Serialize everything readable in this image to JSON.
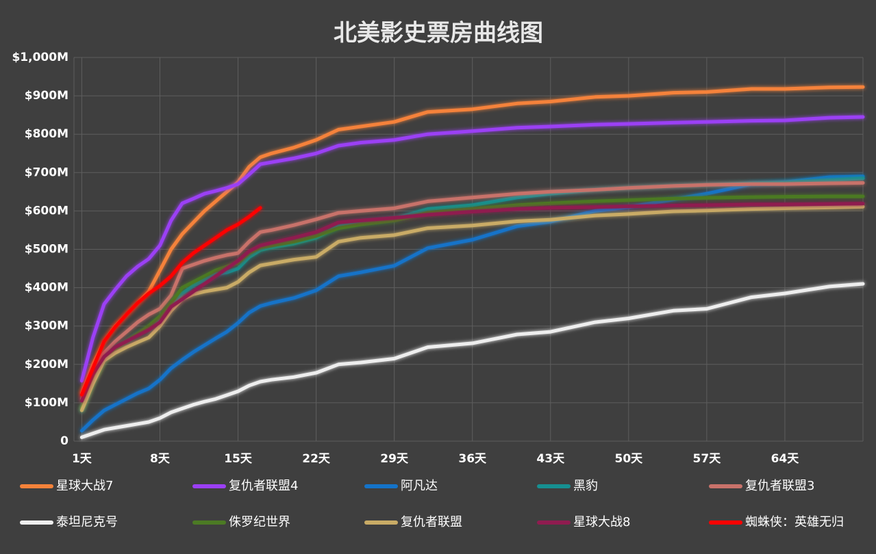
{
  "chart_data": {
    "type": "line",
    "title": "北美影史票房曲线图",
    "x": [
      1,
      2,
      3,
      4,
      5,
      6,
      7,
      8,
      9,
      10,
      11,
      12,
      13,
      14,
      15,
      16,
      17,
      18,
      20,
      22,
      24,
      26,
      29,
      32,
      36,
      40,
      43,
      47,
      50,
      54,
      57,
      61,
      64,
      68,
      71
    ],
    "xlim": [
      0.3,
      71
    ],
    "xticks": [
      {
        "value": 1,
        "label": "1天"
      },
      {
        "value": 8,
        "label": "8天"
      },
      {
        "value": 15,
        "label": "15天"
      },
      {
        "value": 22,
        "label": "22天"
      },
      {
        "value": 29,
        "label": "29天"
      },
      {
        "value": 36,
        "label": "36天"
      },
      {
        "value": 43,
        "label": "43天"
      },
      {
        "value": 50,
        "label": "50天"
      },
      {
        "value": 57,
        "label": "57天"
      },
      {
        "value": 64,
        "label": "64天"
      }
    ],
    "ylim": [
      0,
      1000
    ],
    "yticks": [
      0,
      {
        "value": 100,
        "label": "$100M"
      },
      {
        "value": 200,
        "label": "$200M"
      },
      {
        "value": 300,
        "label": "$300M"
      },
      {
        "value": 400,
        "label": "$400M"
      },
      {
        "value": 500,
        "label": "$500M"
      },
      {
        "value": 600,
        "label": "$600M"
      },
      {
        "value": 700,
        "label": "$700M"
      },
      {
        "value": 800,
        "label": "$800M"
      },
      {
        "value": 900,
        "label": "$900M"
      },
      {
        "value": 1000,
        "label": "$1,000M"
      }
    ],
    "grid": true,
    "legend": "bottom",
    "series": [
      {
        "name": "星球大战7",
        "color": "#f5823a",
        "values": [
          125,
          200,
          260,
          300,
          330,
          360,
          390,
          445,
          500,
          540,
          570,
          600,
          625,
          650,
          675,
          715,
          740,
          750,
          765,
          785,
          812,
          820,
          832,
          858,
          865,
          880,
          885,
          897,
          900,
          908,
          910,
          918,
          918,
          922,
          923
        ]
      },
      {
        "name": "复仇者联盟4",
        "color": "#9b3ff5",
        "values": [
          157,
          270,
          357,
          395,
          430,
          455,
          475,
          510,
          575,
          620,
          632,
          645,
          652,
          660,
          670,
          695,
          722,
          727,
          737,
          750,
          770,
          778,
          785,
          800,
          808,
          817,
          820,
          825,
          827,
          830,
          832,
          835,
          836,
          843,
          845
        ]
      },
      {
        "name": "阿凡达",
        "color": "#1473c8",
        "values": [
          27,
          55,
          80,
          95,
          110,
          125,
          137,
          160,
          190,
          212,
          232,
          250,
          268,
          285,
          308,
          335,
          352,
          360,
          373,
          393,
          430,
          440,
          457,
          503,
          525,
          560,
          572,
          600,
          610,
          630,
          645,
          670,
          675,
          688,
          690
        ]
      },
      {
        "name": "黑豹",
        "color": "#168f91",
        "values": [
          80,
          160,
          215,
          240,
          260,
          280,
          292,
          320,
          355,
          385,
          405,
          420,
          435,
          440,
          450,
          480,
          498,
          505,
          515,
          530,
          560,
          570,
          580,
          605,
          615,
          635,
          645,
          655,
          660,
          665,
          668,
          672,
          674,
          680,
          685
        ]
      },
      {
        "name": "复仇者联盟3",
        "color": "#c8726a",
        "values": [
          110,
          190,
          230,
          260,
          285,
          310,
          330,
          345,
          380,
          450,
          460,
          470,
          478,
          485,
          490,
          520,
          545,
          550,
          563,
          578,
          595,
          600,
          607,
          625,
          635,
          645,
          650,
          655,
          660,
          665,
          668,
          670,
          670,
          672,
          673
        ]
      },
      {
        "name": "泰坦尼克号",
        "color": "#eeeeee",
        "values": [
          10,
          20,
          30,
          35,
          40,
          45,
          50,
          60,
          75,
          85,
          95,
          103,
          110,
          120,
          130,
          145,
          155,
          160,
          167,
          178,
          200,
          205,
          215,
          245,
          255,
          278,
          285,
          310,
          320,
          340,
          345,
          375,
          385,
          403,
          410
        ]
      },
      {
        "name": "侏罗纪世界",
        "color": "#4c7a24",
        "values": [
          85,
          155,
          210,
          240,
          260,
          280,
          300,
          325,
          360,
          400,
          415,
          430,
          445,
          455,
          465,
          490,
          505,
          510,
          520,
          535,
          555,
          565,
          575,
          595,
          605,
          615,
          620,
          625,
          628,
          632,
          634,
          636,
          637,
          638,
          638
        ]
      },
      {
        "name": "复仇者联盟",
        "color": "#c9ab66",
        "values": [
          80,
          150,
          210,
          230,
          245,
          258,
          270,
          300,
          340,
          370,
          383,
          390,
          395,
          400,
          415,
          440,
          458,
          463,
          473,
          480,
          520,
          530,
          537,
          555,
          562,
          573,
          577,
          588,
          592,
          599,
          601,
          605,
          607,
          609,
          611
        ]
      },
      {
        "name": "星球大战8",
        "color": "#8f1c50",
        "values": [
          105,
          175,
          220,
          245,
          260,
          275,
          290,
          310,
          350,
          370,
          390,
          410,
          430,
          450,
          470,
          495,
          510,
          517,
          530,
          545,
          570,
          575,
          582,
          590,
          598,
          605,
          608,
          610,
          612,
          614,
          615,
          617,
          617,
          618,
          619
        ]
      },
      {
        "name": "蜘蛛侠：英雄无归",
        "color": "#ff0000",
        "values": [
          121,
          190,
          260,
          298,
          330,
          360,
          385,
          405,
          430,
          465,
          490,
          510,
          530,
          550,
          565,
          585,
          608,
          null,
          null,
          null,
          null,
          null,
          null,
          null,
          null,
          null,
          null,
          null,
          null,
          null,
          null,
          null,
          null,
          null,
          null
        ]
      }
    ]
  }
}
